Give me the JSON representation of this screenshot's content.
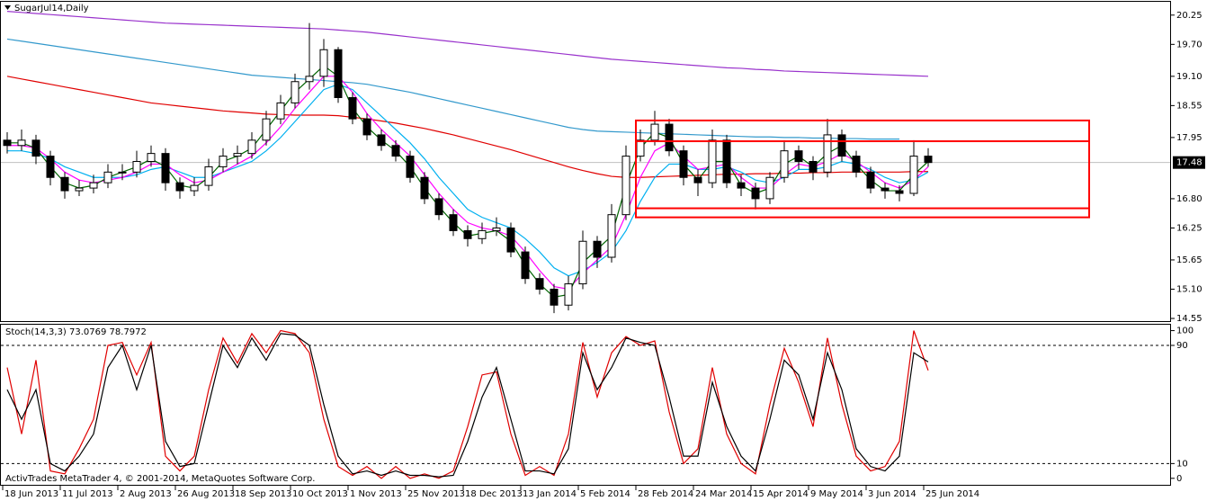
{
  "chart_data": [
    {
      "type": "candlestick",
      "title": "SugarJul14,Daily",
      "categories": [
        "18 Jun 2013",
        null,
        null,
        null,
        "11 Jul 2013",
        null,
        null,
        null,
        "2 Aug 2013",
        null,
        null,
        null,
        "26 Aug 2013",
        null,
        null,
        null,
        "18 Sep 2013",
        null,
        null,
        null,
        "10 Oct 2013",
        null,
        null,
        null,
        "1 Nov 2013",
        null,
        null,
        null,
        "25 Nov 2013",
        null,
        null,
        null,
        "18 Dec 2013",
        null,
        null,
        null,
        "13 Jan 2014",
        null,
        null,
        null,
        "5 Feb 2014",
        null,
        null,
        null,
        "28 Feb 2014",
        null,
        null,
        null,
        "24 Mar 2014",
        null,
        null,
        null,
        "15 Apr 2014",
        null,
        null,
        null,
        "9 May 2014",
        null,
        null,
        null,
        "3 Jun 2014",
        null,
        null,
        null,
        "25 Jun 2014"
      ],
      "open": [
        17.9,
        17.8,
        17.9,
        17.6,
        17.2,
        16.95,
        17.0,
        17.1,
        17.3,
        17.3,
        17.5,
        17.65,
        17.1,
        16.95,
        17.05,
        17.4,
        17.6,
        17.65,
        17.9,
        18.3,
        18.6,
        19.0,
        19.1,
        19.6,
        18.7,
        18.3,
        18.0,
        17.8,
        17.6,
        17.2,
        16.8,
        16.5,
        16.2,
        16.05,
        16.2,
        16.25,
        15.8,
        15.3,
        15.1,
        14.8,
        15.2,
        16.0,
        15.7,
        16.5,
        17.6,
        17.9,
        18.2,
        17.7,
        17.2,
        17.1,
        17.9,
        17.1,
        17.0,
        16.8,
        17.2,
        17.7,
        17.5,
        17.3,
        18.0,
        17.6,
        17.3,
        17.0,
        16.95,
        16.9,
        17.6
      ],
      "high": [
        18.05,
        18.1,
        18.0,
        17.7,
        17.3,
        17.15,
        17.25,
        17.45,
        17.45,
        17.7,
        17.8,
        17.75,
        17.2,
        17.2,
        17.55,
        17.75,
        17.8,
        18.05,
        18.45,
        18.75,
        19.15,
        20.1,
        19.8,
        19.65,
        18.8,
        18.4,
        18.1,
        17.9,
        17.7,
        17.3,
        16.9,
        16.6,
        16.3,
        16.35,
        16.45,
        16.35,
        15.9,
        15.4,
        15.2,
        15.35,
        16.2,
        16.1,
        16.7,
        17.8,
        18.1,
        18.45,
        18.3,
        17.8,
        17.35,
        18.1,
        18.0,
        17.25,
        17.1,
        17.3,
        17.9,
        17.8,
        17.6,
        18.3,
        18.1,
        17.7,
        17.4,
        17.1,
        17.05,
        17.9,
        17.75
      ],
      "low": [
        17.65,
        17.7,
        17.45,
        17.05,
        16.8,
        16.85,
        16.9,
        17.0,
        17.15,
        17.2,
        17.4,
        16.95,
        16.8,
        16.85,
        16.95,
        17.3,
        17.45,
        17.55,
        17.8,
        18.2,
        18.5,
        18.85,
        18.9,
        18.6,
        18.2,
        17.9,
        17.7,
        17.5,
        17.1,
        16.7,
        16.4,
        16.1,
        15.9,
        15.95,
        16.1,
        15.7,
        15.2,
        15.0,
        14.65,
        14.7,
        15.1,
        15.5,
        15.6,
        16.4,
        17.5,
        17.8,
        17.6,
        17.05,
        16.85,
        17.0,
        17.0,
        16.85,
        16.6,
        16.7,
        17.1,
        17.35,
        17.15,
        17.2,
        17.5,
        17.2,
        16.9,
        16.8,
        16.75,
        16.85,
        17.4
      ],
      "close": [
        17.8,
        17.9,
        17.6,
        17.2,
        16.95,
        17.0,
        17.1,
        17.3,
        17.3,
        17.5,
        17.65,
        17.1,
        16.95,
        17.05,
        17.4,
        17.6,
        17.65,
        17.9,
        18.3,
        18.6,
        19.0,
        19.1,
        19.6,
        18.7,
        18.3,
        18.0,
        17.8,
        17.6,
        17.2,
        16.8,
        16.5,
        16.2,
        16.05,
        16.2,
        16.25,
        15.8,
        15.3,
        15.1,
        14.8,
        15.2,
        16.0,
        15.7,
        16.5,
        17.6,
        17.9,
        18.2,
        17.7,
        17.2,
        17.1,
        17.9,
        17.1,
        17.0,
        16.8,
        17.2,
        17.7,
        17.5,
        17.3,
        18.0,
        17.6,
        17.3,
        17.0,
        16.95,
        16.9,
        17.6,
        17.48
      ],
      "bull_color": "#ffffff",
      "bear_color": "#000000",
      "overlays": [
        {
          "color": "#9932cc",
          "values": [
            20.32,
            20.3,
            20.28,
            20.26,
            20.24,
            20.22,
            20.2,
            20.18,
            20.16,
            20.14,
            20.12,
            20.1,
            20.09,
            20.08,
            20.07,
            20.06,
            20.05,
            20.04,
            20.03,
            20.02,
            20.01,
            20.0,
            19.99,
            19.97,
            19.95,
            19.93,
            19.9,
            19.87,
            19.84,
            19.81,
            19.78,
            19.75,
            19.72,
            19.69,
            19.66,
            19.63,
            19.6,
            19.57,
            19.54,
            19.51,
            19.48,
            19.45,
            19.42,
            19.4,
            19.38,
            19.36,
            19.34,
            19.32,
            19.3,
            19.28,
            19.26,
            19.25,
            19.23,
            19.22,
            19.2,
            19.19,
            19.18,
            19.17,
            19.16,
            19.15,
            19.14,
            19.13,
            19.12,
            19.11,
            19.1
          ]
        },
        {
          "color": "#3399cc",
          "values": [
            19.8,
            19.76,
            19.72,
            19.68,
            19.64,
            19.6,
            19.56,
            19.52,
            19.48,
            19.44,
            19.4,
            19.36,
            19.32,
            19.28,
            19.24,
            19.2,
            19.16,
            19.12,
            19.1,
            19.08,
            19.06,
            19.04,
            19.02,
            19.0,
            18.98,
            18.95,
            18.9,
            18.85,
            18.8,
            18.74,
            18.68,
            18.62,
            18.56,
            18.5,
            18.44,
            18.38,
            18.32,
            18.26,
            18.2,
            18.14,
            18.1,
            18.07,
            18.06,
            18.05,
            18.04,
            18.03,
            18.02,
            18.01,
            18.0,
            17.99,
            17.98,
            17.97,
            17.96,
            17.96,
            17.95,
            17.95,
            17.94,
            17.94,
            17.93,
            17.93,
            17.92,
            17.92,
            17.92,
            null,
            null
          ]
        },
        {
          "color": "#e00000",
          "values": [
            19.1,
            19.05,
            19.0,
            18.95,
            18.9,
            18.85,
            18.8,
            18.75,
            18.7,
            18.65,
            18.6,
            18.57,
            18.54,
            18.51,
            18.48,
            18.45,
            18.43,
            18.41,
            18.39,
            18.38,
            18.37,
            18.37,
            18.37,
            18.36,
            18.33,
            18.3,
            18.26,
            18.22,
            18.17,
            18.12,
            18.06,
            18.0,
            17.93,
            17.86,
            17.79,
            17.72,
            17.64,
            17.56,
            17.48,
            17.4,
            17.33,
            17.27,
            17.22,
            17.2,
            17.2,
            17.21,
            17.22,
            17.23,
            17.24,
            17.25,
            17.26,
            17.26,
            17.27,
            17.27,
            17.28,
            17.28,
            17.29,
            17.29,
            17.3,
            17.3,
            17.3,
            17.3,
            17.3,
            17.31,
            17.31
          ]
        },
        {
          "color": "#00b0f0",
          "values": [
            17.7,
            17.7,
            17.65,
            17.55,
            17.4,
            17.3,
            17.2,
            17.2,
            17.2,
            17.25,
            17.35,
            17.4,
            17.3,
            17.2,
            17.2,
            17.3,
            17.4,
            17.5,
            17.7,
            17.95,
            18.25,
            18.55,
            18.85,
            18.95,
            18.85,
            18.6,
            18.35,
            18.1,
            17.85,
            17.55,
            17.2,
            16.9,
            16.6,
            16.45,
            16.35,
            16.25,
            16.05,
            15.8,
            15.5,
            15.35,
            15.45,
            15.6,
            15.8,
            16.2,
            16.75,
            17.2,
            17.45,
            17.45,
            17.35,
            17.35,
            17.4,
            17.3,
            17.15,
            17.1,
            17.2,
            17.35,
            17.35,
            17.4,
            17.5,
            17.45,
            17.35,
            17.2,
            17.1,
            17.15,
            17.3
          ]
        },
        {
          "color": "#ff00ff",
          "values": [
            17.8,
            17.8,
            17.75,
            17.55,
            17.3,
            17.15,
            17.1,
            17.15,
            17.2,
            17.3,
            17.45,
            17.45,
            17.25,
            17.1,
            17.15,
            17.3,
            17.45,
            17.6,
            17.85,
            18.15,
            18.5,
            18.8,
            19.1,
            19.1,
            18.8,
            18.4,
            18.1,
            17.85,
            17.6,
            17.25,
            16.9,
            16.6,
            16.35,
            16.25,
            16.2,
            16.1,
            15.8,
            15.45,
            15.15,
            15.1,
            15.4,
            15.65,
            15.9,
            16.5,
            17.2,
            17.7,
            17.85,
            17.6,
            17.35,
            17.4,
            17.45,
            17.2,
            17.0,
            17.0,
            17.25,
            17.45,
            17.4,
            17.5,
            17.65,
            17.5,
            17.3,
            17.1,
            17.0,
            17.15,
            17.4
          ]
        },
        {
          "color": "#006400",
          "values": [
            17.85,
            17.85,
            17.75,
            17.4,
            17.1,
            17.0,
            17.05,
            17.2,
            17.3,
            17.4,
            17.55,
            17.4,
            17.05,
            17.0,
            17.2,
            17.5,
            17.6,
            17.75,
            18.1,
            18.45,
            18.8,
            19.05,
            19.3,
            19.1,
            18.5,
            18.15,
            17.9,
            17.7,
            17.4,
            17.0,
            16.65,
            16.35,
            16.1,
            16.15,
            16.2,
            16.0,
            15.55,
            15.2,
            14.95,
            15.0,
            15.6,
            15.85,
            16.1,
            17.05,
            17.75,
            18.05,
            17.95,
            17.45,
            17.15,
            17.5,
            17.5,
            17.05,
            16.9,
            17.0,
            17.45,
            17.6,
            17.4,
            17.65,
            17.8,
            17.45,
            17.15,
            16.95,
            16.95,
            17.25,
            17.5
          ]
        }
      ],
      "rectangles": [
        {
          "top": 18.27,
          "bottom": 16.45,
          "color": "#ff0000"
        },
        {
          "top": 17.88,
          "bottom": 16.62,
          "color": "#ff0000"
        }
      ],
      "last_price": 17.48,
      "ylim": [
        14.5,
        20.5
      ],
      "yticks": [
        14.55,
        {
          "value": 15.1,
          "label": "15.10"
        },
        15.65,
        16.25,
        {
          "value": 16.8,
          "label": "16.80"
        },
        17.95,
        18.55,
        {
          "value": 19.1,
          "label": "19.10"
        },
        {
          "value": 19.7,
          "label": "19.70"
        },
        20.25
      ]
    },
    {
      "type": "line",
      "title": "Stoch(14,3,3) 73.0769 78.7972",
      "series": [
        {
          "color": "#e00000",
          "values": [
            75,
            30,
            80,
            5,
            3,
            20,
            40,
            90,
            92,
            70,
            92,
            15,
            5,
            15,
            60,
            95,
            78,
            98,
            85,
            100,
            98,
            85,
            40,
            8,
            2,
            8,
            0,
            8,
            0,
            3,
            0,
            5,
            35,
            70,
            72,
            30,
            2,
            8,
            2,
            30,
            92,
            55,
            85,
            96,
            90,
            93,
            45,
            10,
            20,
            75,
            30,
            10,
            3,
            50,
            88,
            65,
            35,
            95,
            50,
            15,
            5,
            8,
            25,
            100,
            73.0769
          ]
        },
        {
          "color": "#000000",
          "values": [
            60,
            40,
            60,
            10,
            5,
            15,
            30,
            75,
            90,
            60,
            90,
            25,
            8,
            10,
            50,
            90,
            75,
            95,
            80,
            98,
            97,
            90,
            50,
            15,
            3,
            5,
            2,
            5,
            2,
            2,
            1,
            2,
            25,
            55,
            75,
            40,
            5,
            5,
            3,
            20,
            85,
            60,
            75,
            95,
            92,
            90,
            55,
            15,
            15,
            65,
            35,
            15,
            5,
            40,
            80,
            70,
            40,
            85,
            60,
            20,
            8,
            5,
            15,
            85,
            78.7972
          ]
        }
      ],
      "levels": [
        90,
        10
      ],
      "ylim": [
        -5,
        104
      ],
      "yticks": [
        0,
        10,
        90,
        100
      ]
    }
  ],
  "watermark": "ActivTrades MetaTrader 4, © 2001-2014, MetaQuotes Software Corp."
}
